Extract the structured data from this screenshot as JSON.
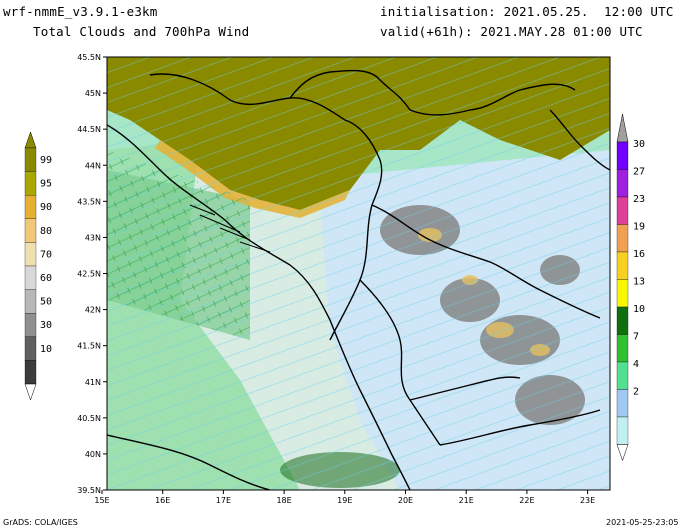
{
  "header": {
    "model_line": "wrf-nmmE_v3.9.1-e3km",
    "product_line": "Total Clouds and 700hPa Wind",
    "init_line": "initialisation: 2021.05.25.  12:00 UTC",
    "valid_line": "valid(+61h): 2021.MAY.28 01:00 UTC"
  },
  "map": {
    "lat_labels": [
      "45.5N",
      "45N",
      "44.5N",
      "44N",
      "43.5N",
      "43N",
      "42.5N",
      "42N",
      "41.5N",
      "41N",
      "40.5N",
      "40N",
      "39.5N"
    ],
    "lon_labels": [
      "15E",
      "16E",
      "17E",
      "18E",
      "19E",
      "20E",
      "21E",
      "22E",
      "23E"
    ]
  },
  "left_colorbar": {
    "levels": [
      "99",
      "95",
      "90",
      "80",
      "70",
      "60",
      "50",
      "30",
      "10"
    ],
    "colors": [
      "#8a8a00",
      "#a8a800",
      "#e6b030",
      "#f0c878",
      "#f0e0b0",
      "#d8d8d8",
      "#b8b8b8",
      "#909090",
      "#606060",
      "#3c3c3c"
    ]
  },
  "right_colorbar": {
    "levels": [
      "30",
      "27",
      "23",
      "19",
      "16",
      "13",
      "10",
      "7",
      "4",
      "2"
    ],
    "colors": [
      "#7000ff",
      "#a020e0",
      "#e0409a",
      "#f0a050",
      "#f8d020",
      "#f8f800",
      "#107010",
      "#30c030",
      "#50e090",
      "#a0c8f0",
      "#c0f0f0"
    ]
  },
  "footer": {
    "left": "GrADS: COLA/IGES",
    "right": "2021-05-25-23:05"
  }
}
